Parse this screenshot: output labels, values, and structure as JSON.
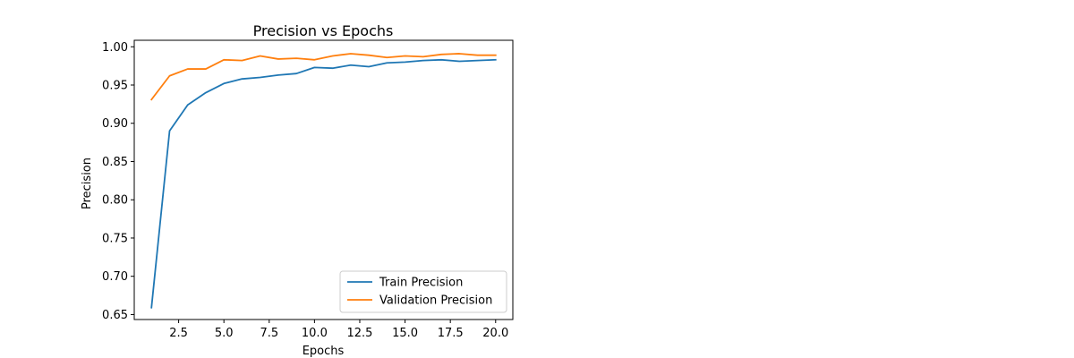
{
  "chart_data": {
    "type": "line",
    "title": "Precision vs Epochs",
    "xlabel": "Epochs",
    "ylabel": "Precision",
    "xlim": [
      0.05,
      20.95
    ],
    "ylim": [
      0.6435,
      1.0085
    ],
    "xticks": [
      2.5,
      5.0,
      7.5,
      10.0,
      12.5,
      15.0,
      17.5,
      20.0
    ],
    "xtick_labels": [
      "2.5",
      "5.0",
      "7.5",
      "10.0",
      "12.5",
      "15.0",
      "17.5",
      "20.0"
    ],
    "yticks": [
      0.65,
      0.7,
      0.75,
      0.8,
      0.85,
      0.9,
      0.95,
      1.0
    ],
    "ytick_labels": [
      "0.65",
      "0.70",
      "0.75",
      "0.80",
      "0.85",
      "0.90",
      "0.95",
      "1.00"
    ],
    "x": [
      1,
      2,
      3,
      4,
      5,
      6,
      7,
      8,
      9,
      10,
      11,
      12,
      13,
      14,
      15,
      16,
      17,
      18,
      19,
      20
    ],
    "series": [
      {
        "name": "Train Precision",
        "color": "#1f77b4",
        "values": [
          0.659,
          0.89,
          0.924,
          0.94,
          0.952,
          0.958,
          0.96,
          0.963,
          0.965,
          0.973,
          0.972,
          0.976,
          0.974,
          0.979,
          0.98,
          0.982,
          0.983,
          0.981,
          0.982,
          0.983
        ]
      },
      {
        "name": "Validation Precision",
        "color": "#ff7f0e",
        "values": [
          0.931,
          0.962,
          0.971,
          0.971,
          0.983,
          0.982,
          0.988,
          0.984,
          0.985,
          0.983,
          0.988,
          0.991,
          0.989,
          0.986,
          0.988,
          0.987,
          0.99,
          0.991,
          0.989,
          0.989
        ]
      }
    ],
    "grid": false,
    "legend_position": "lower right"
  }
}
